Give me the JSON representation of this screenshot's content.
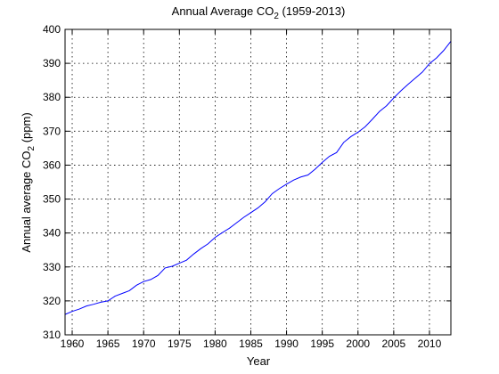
{
  "chart_data": {
    "type": "line",
    "title_main": "Annual Average CO",
    "title_sub": "2",
    "title_rest": " (1959-2013)",
    "xlabel": "Year",
    "ylabel_main": "Annual average CO",
    "ylabel_sub": "2",
    "ylabel_rest": " (ppm)",
    "xlim": [
      1959,
      2013
    ],
    "ylim": [
      310,
      400
    ],
    "xticks": [
      1960,
      1965,
      1970,
      1975,
      1980,
      1985,
      1990,
      1995,
      2000,
      2005,
      2010
    ],
    "yticks": [
      310,
      320,
      330,
      340,
      350,
      360,
      370,
      380,
      390,
      400
    ],
    "grid": true,
    "line_color": "#0000ff",
    "series": [
      {
        "x": [
          1959,
          1960,
          1961,
          1962,
          1963,
          1964,
          1965,
          1966,
          1967,
          1968,
          1969,
          1970,
          1971,
          1972,
          1973,
          1974,
          1975,
          1976,
          1977,
          1978,
          1979,
          1980,
          1981,
          1982,
          1983,
          1984,
          1985,
          1986,
          1987,
          1988,
          1989,
          1990,
          1991,
          1992,
          1993,
          1994,
          1995,
          1996,
          1997,
          1998,
          1999,
          2000,
          2001,
          2002,
          2003,
          2004,
          2005,
          2006,
          2007,
          2008,
          2009,
          2010,
          2011,
          2012,
          2013
        ],
        "y": [
          316.0,
          316.9,
          317.6,
          318.5,
          319.0,
          319.6,
          320.0,
          321.4,
          322.2,
          323.0,
          324.6,
          325.7,
          326.3,
          327.5,
          329.7,
          330.2,
          331.1,
          332.0,
          333.8,
          335.4,
          336.8,
          338.7,
          340.1,
          341.4,
          343.0,
          344.6,
          346.0,
          347.4,
          349.2,
          351.6,
          353.1,
          354.4,
          355.6,
          356.5,
          357.1,
          358.8,
          360.8,
          362.6,
          363.7,
          366.7,
          368.4,
          369.7,
          371.3,
          373.5,
          375.8,
          377.5,
          379.8,
          381.9,
          383.8,
          385.6,
          387.4,
          389.9,
          391.6,
          393.8,
          396.5
        ]
      }
    ]
  }
}
